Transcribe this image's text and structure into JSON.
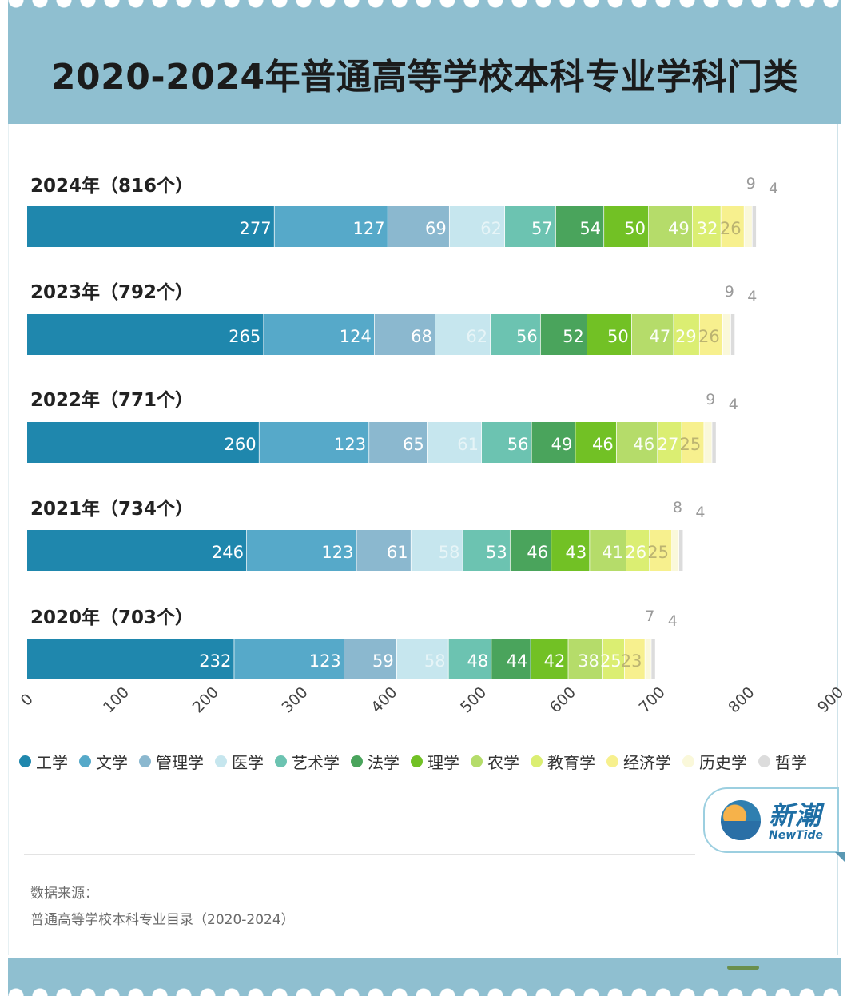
{
  "title": "2020-2024年普通高等学校本科专业学科门类",
  "chart_data": {
    "type": "bar",
    "orientation": "horizontal",
    "stacked": true,
    "xlim": [
      0,
      900
    ],
    "x_ticks": [
      "0",
      "100",
      "200",
      "300",
      "400",
      "500",
      "600",
      "700",
      "800",
      "900"
    ],
    "categories": [
      "2024年（816个）",
      "2023年（792个）",
      "2022年（771个）",
      "2021年（734个）",
      "2020年（703个）"
    ],
    "series": [
      {
        "name": "工学",
        "color": "#1f87ad",
        "values": [
          277,
          265,
          260,
          246,
          232
        ]
      },
      {
        "name": "文学",
        "color": "#56a9c9",
        "values": [
          127,
          124,
          123,
          123,
          123
        ]
      },
      {
        "name": "管理学",
        "color": "#8bb8cf",
        "values": [
          69,
          68,
          65,
          61,
          59
        ]
      },
      {
        "name": "医学",
        "color": "#c6e6ee",
        "values": [
          62,
          62,
          61,
          58,
          58
        ]
      },
      {
        "name": "艺术学",
        "color": "#6cc3b1",
        "values": [
          57,
          56,
          56,
          53,
          48
        ]
      },
      {
        "name": "法学",
        "color": "#4aa45c",
        "values": [
          54,
          52,
          49,
          46,
          44
        ]
      },
      {
        "name": "理学",
        "color": "#72c125",
        "values": [
          50,
          50,
          46,
          43,
          42
        ]
      },
      {
        "name": "农学",
        "color": "#b5dc6a",
        "values": [
          49,
          47,
          46,
          41,
          38
        ]
      },
      {
        "name": "教育学",
        "color": "#dbee72",
        "values": [
          32,
          29,
          27,
          26,
          25
        ]
      },
      {
        "name": "经济学",
        "color": "#f7f08e",
        "values": [
          26,
          26,
          25,
          25,
          23
        ]
      },
      {
        "name": "历史学",
        "color": "#faf8da",
        "values": [
          9,
          9,
          9,
          8,
          7
        ]
      },
      {
        "name": "哲学",
        "color": "#dcdcdc",
        "values": [
          4,
          4,
          4,
          4,
          4
        ]
      }
    ],
    "legend_position": "bottom",
    "grid": false
  },
  "source_label": "数据来源：",
  "source_text": "普通高等学校本科专业目录（2020-2024）",
  "logo": {
    "cn": "新潮",
    "en": "NewTide"
  }
}
